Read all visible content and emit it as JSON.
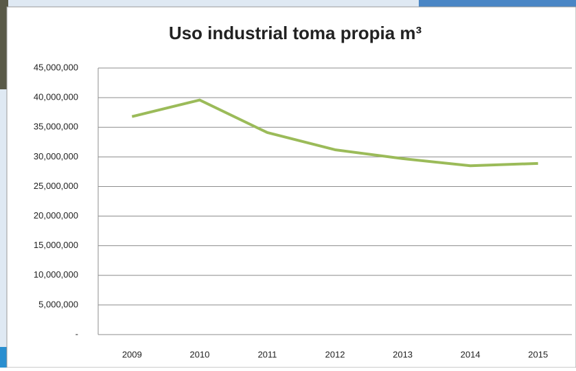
{
  "chart_data": {
    "type": "line",
    "title": "Uso industrial toma propia m³",
    "categories": [
      "2009",
      "2010",
      "2011",
      "2012",
      "2013",
      "2014",
      "2015"
    ],
    "series": [
      {
        "name": "Uso industrial toma propia m³",
        "color": "#9bbb59",
        "values": [
          36800000,
          39600000,
          34100000,
          31200000,
          29700000,
          28500000,
          28900000
        ]
      }
    ],
    "ylim": [
      0,
      45000000
    ],
    "yticks": [
      {
        "value": 0,
        "label": "-"
      },
      {
        "value": 5000000,
        "label": "5,000,000"
      },
      {
        "value": 10000000,
        "label": "10,000,000"
      },
      {
        "value": 15000000,
        "label": "15,000,000"
      },
      {
        "value": 20000000,
        "label": "20,000,000"
      },
      {
        "value": 25000000,
        "label": "25,000,000"
      },
      {
        "value": 30000000,
        "label": "30,000,000"
      },
      {
        "value": 35000000,
        "label": "35,000,000"
      },
      {
        "value": 40000000,
        "label": "40,000,000"
      },
      {
        "value": 45000000,
        "label": "45,000,000"
      }
    ],
    "grid": true
  }
}
